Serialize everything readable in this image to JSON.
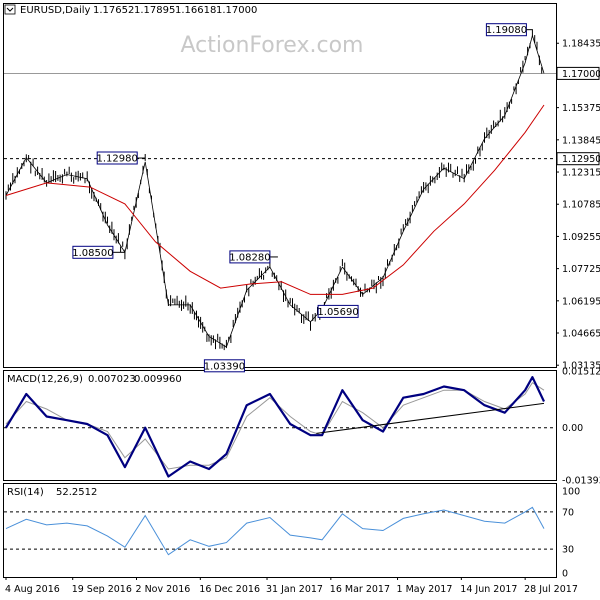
{
  "watermark": "ActionForex.com",
  "colors": {
    "price_bar": "#000000",
    "sma": "#cc0000",
    "macd_line": "#000080",
    "signal_line": "#999999",
    "rsi_line": "#4a90d9",
    "label_border": "#000080",
    "grid": "#000000",
    "watermark": "#c8c8c8"
  },
  "chart_data": [
    {
      "id": "price",
      "type": "line",
      "header": {
        "symbol_tf": "EURUSD,Daily",
        "open": "1.17652",
        "high": "1.17895",
        "low": "1.16618",
        "close": "1.17000"
      },
      "ylim": [
        1.0305,
        1.203
      ],
      "y_ticks": [
        "1.18435",
        "1.15375",
        "1.13845",
        "1.12315",
        "1.10785",
        "1.09255",
        "1.07725",
        "1.06195",
        "1.04665",
        "1.03135"
      ],
      "current_price_label": "1.17000",
      "current_price": 1.17,
      "horizontal_level_label": "1.12950",
      "horizontal_level": 1.1295,
      "x_ticks": [
        "4 Aug 2016",
        "19 Sep 2016",
        "2 Nov 2016",
        "16 Dec 2016",
        "31 Jan 2017",
        "16 Mar 2017",
        "1 May 2017",
        "14 Jun 2017",
        "28 Jul 2017"
      ],
      "annotations": [
        {
          "text": "1.12980",
          "x": "2016-11-08",
          "y": 1.1298
        },
        {
          "text": "1.08500",
          "x": "2016-10-25",
          "y": 1.085
        },
        {
          "text": "1.08280",
          "x": "2017-02-02",
          "y": 1.0828
        },
        {
          "text": "1.03390",
          "x": "2017-01-03",
          "y": 1.0339
        },
        {
          "text": "1.05690",
          "x": "2017-03-10",
          "y": 1.0569
        },
        {
          "text": "1.19080",
          "x": "2017-08-02",
          "y": 1.1908
        }
      ],
      "series": [
        {
          "name": "EURUSD",
          "x": [
            "2016-08-04",
            "2016-08-18",
            "2016-09-01",
            "2016-09-15",
            "2016-09-29",
            "2016-10-13",
            "2016-10-25",
            "2016-11-08",
            "2016-11-24",
            "2016-12-09",
            "2016-12-22",
            "2017-01-03",
            "2017-01-17",
            "2017-02-02",
            "2017-02-16",
            "2017-03-02",
            "2017-03-10",
            "2017-03-24",
            "2017-04-07",
            "2017-04-21",
            "2017-05-05",
            "2017-05-19",
            "2017-06-02",
            "2017-06-16",
            "2017-06-30",
            "2017-07-14",
            "2017-07-28",
            "2017-08-02",
            "2017-08-10"
          ],
          "y": [
            1.112,
            1.13,
            1.118,
            1.122,
            1.12,
            1.098,
            1.085,
            1.128,
            1.06,
            1.06,
            1.045,
            1.04,
            1.067,
            1.078,
            1.06,
            1.052,
            1.058,
            1.078,
            1.065,
            1.073,
            1.095,
            1.115,
            1.125,
            1.12,
            1.139,
            1.15,
            1.175,
            1.188,
            1.17
          ]
        },
        {
          "name": "SMA",
          "x": [
            "2016-08-04",
            "2016-09-01",
            "2016-10-01",
            "2016-10-25",
            "2016-11-15",
            "2016-12-09",
            "2016-12-30",
            "2017-01-20",
            "2017-02-10",
            "2017-03-02",
            "2017-03-24",
            "2017-04-14",
            "2017-05-05",
            "2017-05-26",
            "2017-06-16",
            "2017-07-07",
            "2017-07-28",
            "2017-08-10"
          ],
          "y": [
            1.112,
            1.118,
            1.116,
            1.108,
            1.09,
            1.076,
            1.068,
            1.07,
            1.071,
            1.065,
            1.065,
            1.068,
            1.079,
            1.095,
            1.108,
            1.124,
            1.142,
            1.155
          ]
        }
      ]
    },
    {
      "id": "macd",
      "type": "line",
      "header": {
        "label": "MACD(12,26,9)",
        "macd": "0.007023",
        "signal": "0.009960"
      },
      "ylim": [
        -0.01394,
        0.01512
      ],
      "y_ticks": [
        "0.01512",
        "0.00",
        "-0.013938"
      ],
      "x": [
        "2016-08-04",
        "2016-08-18",
        "2016-09-01",
        "2016-09-15",
        "2016-09-29",
        "2016-10-13",
        "2016-10-25",
        "2016-11-08",
        "2016-11-24",
        "2016-12-09",
        "2016-12-22",
        "2017-01-03",
        "2017-01-17",
        "2017-02-02",
        "2017-02-16",
        "2017-03-02",
        "2017-03-10",
        "2017-03-24",
        "2017-04-07",
        "2017-04-21",
        "2017-05-05",
        "2017-05-19",
        "2017-06-02",
        "2017-06-16",
        "2017-06-30",
        "2017-07-14",
        "2017-07-28",
        "2017-08-02",
        "2017-08-10"
      ],
      "series": [
        {
          "name": "MACD",
          "y": [
            0.0,
            0.009,
            0.003,
            0.002,
            0.001,
            -0.002,
            -0.0105,
            0.0,
            -0.013,
            -0.009,
            -0.011,
            -0.007,
            0.006,
            0.009,
            0.001,
            -0.002,
            -0.002,
            0.01,
            0.002,
            -0.001,
            0.008,
            0.009,
            0.011,
            0.01,
            0.006,
            0.004,
            0.01,
            0.0135,
            0.007
          ]
        },
        {
          "name": "Signal",
          "y": [
            0.001,
            0.007,
            0.005,
            0.002,
            0.001,
            -0.001,
            -0.008,
            -0.003,
            -0.011,
            -0.01,
            -0.01,
            -0.008,
            0.003,
            0.008,
            0.003,
            -0.001,
            -0.002,
            0.007,
            0.004,
            0.0,
            0.006,
            0.008,
            0.01,
            0.01,
            0.007,
            0.005,
            0.009,
            0.012,
            0.01
          ]
        }
      ],
      "trendline": {
        "x": [
          "2017-03-06",
          "2017-08-10"
        ],
        "y": [
          -0.0015,
          0.0065
        ]
      }
    },
    {
      "id": "rsi",
      "type": "line",
      "header": {
        "label": "RSI(14)",
        "value": "52.2512"
      },
      "ylim": [
        0,
        100
      ],
      "y_ticks": [
        "100",
        "70",
        "30",
        "0"
      ],
      "levels": [
        70,
        30
      ],
      "x": [
        "2016-08-04",
        "2016-08-18",
        "2016-09-01",
        "2016-09-15",
        "2016-09-29",
        "2016-10-13",
        "2016-10-25",
        "2016-11-08",
        "2016-11-24",
        "2016-12-09",
        "2016-12-22",
        "2017-01-03",
        "2017-01-17",
        "2017-02-02",
        "2017-02-16",
        "2017-03-02",
        "2017-03-10",
        "2017-03-24",
        "2017-04-07",
        "2017-04-21",
        "2017-05-05",
        "2017-05-19",
        "2017-06-02",
        "2017-06-16",
        "2017-06-30",
        "2017-07-14",
        "2017-07-28",
        "2017-08-02",
        "2017-08-10"
      ],
      "series": [
        {
          "name": "RSI",
          "y": [
            52,
            62,
            56,
            58,
            55,
            44,
            32,
            66,
            24,
            40,
            33,
            37,
            58,
            64,
            45,
            42,
            40,
            68,
            52,
            50,
            63,
            68,
            72,
            66,
            60,
            58,
            70,
            75,
            52
          ]
        }
      ]
    }
  ]
}
